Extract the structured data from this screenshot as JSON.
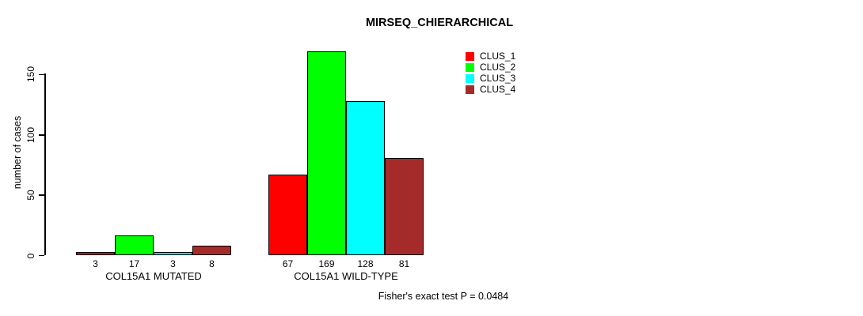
{
  "chart_data": {
    "type": "bar",
    "title": "MIRSEQ_CHIERARCHICAL",
    "ylabel": "number of cases",
    "xlabel": "",
    "categories": [
      "COL15A1 MUTATED",
      "COL15A1 WILD-TYPE"
    ],
    "series": [
      {
        "name": "CLUS_1",
        "color": "#ff0000",
        "values": [
          3,
          67
        ]
      },
      {
        "name": "CLUS_2",
        "color": "#00ff00",
        "values": [
          17,
          169
        ]
      },
      {
        "name": "CLUS_3",
        "color": "#00ffff",
        "values": [
          3,
          128
        ]
      },
      {
        "name": "CLUS_4",
        "color": "#a52a2a",
        "values": [
          8,
          81
        ]
      }
    ],
    "yticks": [
      0,
      50,
      100,
      150
    ],
    "ylim": [
      0,
      175
    ],
    "grid": false,
    "legend_position": "top-right",
    "bar_value_labels_shown": true,
    "footnote": "Fisher's exact test P = 0.0484"
  }
}
